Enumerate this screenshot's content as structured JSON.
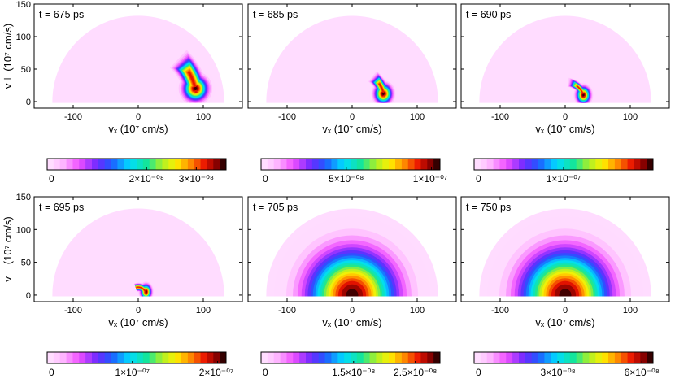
{
  "chart_data": [
    {
      "type": "heatmap",
      "panel": 1,
      "time_label": "t = 675 ps",
      "xlabel": "vₓ (10⁷ cm/s)",
      "ylabel": "v⊥ (10⁷ cm/s)",
      "xticks": [
        "-100",
        "0",
        "100"
      ],
      "yticks": [
        "0",
        "50",
        "100",
        "150"
      ],
      "xlim": [
        -160,
        160
      ],
      "ylim": [
        -10,
        150
      ],
      "peak": {
        "vx": 88,
        "vperp": 20,
        "ring_radius": 90
      },
      "velocity_range": 132,
      "colorbar": {
        "ticks": [
          "0",
          "2×10⁻⁰⁸",
          "3×10⁻⁰⁸"
        ],
        "tick_values": [
          0,
          2e-08,
          3e-08
        ],
        "max": 3.6e-08
      }
    },
    {
      "type": "heatmap",
      "panel": 2,
      "time_label": "t = 685 ps",
      "xlabel": "vₓ (10⁷ cm/s)",
      "xticks": [
        "-100",
        "0",
        "100"
      ],
      "xlim": [
        -160,
        160
      ],
      "ylim": [
        -10,
        150
      ],
      "peak": {
        "vx": 48,
        "vperp": 12,
        "ring_radius": 50
      },
      "velocity_range": 132,
      "colorbar": {
        "ticks": [
          "0",
          "5×10⁻⁰⁸",
          "1×10⁻⁰⁷"
        ],
        "tick_values": [
          0,
          5e-08,
          1e-07
        ],
        "max": 1.05e-07
      }
    },
    {
      "type": "heatmap",
      "panel": 3,
      "time_label": "t = 690 ps",
      "xlabel": "vₓ (10⁷ cm/s)",
      "xticks": [
        "-100",
        "0",
        "100"
      ],
      "xlim": [
        -160,
        160
      ],
      "ylim": [
        -10,
        150
      ],
      "peak": {
        "vx": 28,
        "vperp": 10,
        "ring_radius": 30
      },
      "velocity_range": 132,
      "colorbar": {
        "ticks": [
          "0",
          "1×10⁻⁰⁷"
        ],
        "tick_values": [
          0,
          1e-07
        ],
        "max": 2e-07
      }
    },
    {
      "type": "heatmap",
      "panel": 4,
      "time_label": "t = 695 ps",
      "xlabel": "vₓ (10⁷ cm/s)",
      "ylabel": "v⊥ (10⁷ cm/s)",
      "xticks": [
        "-100",
        "0",
        "100"
      ],
      "yticks": [
        "0",
        "50",
        "100",
        "150"
      ],
      "xlim": [
        -160,
        160
      ],
      "ylim": [
        -10,
        150
      ],
      "peak": {
        "vx": 12,
        "vperp": 5,
        "ring_radius": 12
      },
      "velocity_range": 132,
      "colorbar": {
        "ticks": [
          "0",
          "1×10⁻⁰⁷",
          "2×10⁻⁰⁷"
        ],
        "tick_values": [
          0,
          1e-07,
          2e-07
        ],
        "max": 2.1e-07
      }
    },
    {
      "type": "heatmap",
      "panel": 5,
      "time_label": "t = 705 ps",
      "xlabel": "vₓ (10⁷ cm/s)",
      "xticks": [
        "-100",
        "0",
        "100"
      ],
      "xlim": [
        -160,
        160
      ],
      "ylim": [
        -10,
        150
      ],
      "peak": {
        "vx": 0,
        "vperp": 0,
        "ring_radius": 0
      },
      "velocity_range": 132,
      "colorbar": {
        "ticks": [
          "0",
          "1.5×10⁻⁰⁸",
          "2.5×10⁻⁰⁸"
        ],
        "tick_values": [
          0,
          1.5e-08,
          2.5e-08
        ],
        "max": 2.9e-08
      }
    },
    {
      "type": "heatmap",
      "panel": 6,
      "time_label": "t = 750 ps",
      "xlabel": "vₓ (10⁷ cm/s)",
      "xticks": [
        "-100",
        "0",
        "100"
      ],
      "xlim": [
        -160,
        160
      ],
      "ylim": [
        -10,
        150
      ],
      "peak": {
        "vx": 0,
        "vperp": 0,
        "ring_radius": 0
      },
      "velocity_range": 132,
      "colorbar": {
        "ticks": [
          "0",
          "3×10⁻⁰⁸",
          "6×10⁻⁰⁸"
        ],
        "tick_values": [
          0,
          3e-08,
          6e-08
        ],
        "max": 6.4e-08
      }
    }
  ]
}
